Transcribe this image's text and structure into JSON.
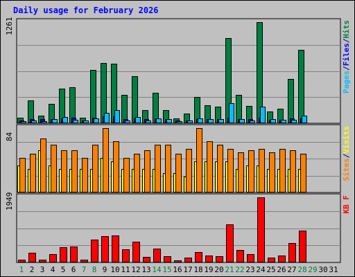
{
  "title": "Daily usage for February 2026",
  "chart_data": [
    {
      "type": "bar",
      "panel": "top",
      "max_label": "1261",
      "ymax": 1261,
      "legend": [
        {
          "text": "Pages",
          "color": "#00c0ff"
        },
        {
          "text": "/",
          "color": "#000080"
        },
        {
          "text": "Files",
          "color": "#0000ff"
        },
        {
          "text": "/",
          "color": "#000080"
        },
        {
          "text": "Hits",
          "color": "#008040"
        }
      ],
      "categories": [
        "1",
        "2",
        "3",
        "4",
        "5",
        "6",
        "7",
        "8",
        "9",
        "10",
        "11",
        "12",
        "13",
        "14",
        "15",
        "16",
        "17",
        "18",
        "19",
        "20",
        "21",
        "22",
        "23",
        "24",
        "25",
        "26",
        "27",
        "28",
        "29",
        "30",
        "31"
      ],
      "series": [
        {
          "name": "Hits",
          "color": "#008040",
          "values": [
            60,
            275,
            85,
            237,
            425,
            445,
            65,
            660,
            750,
            735,
            345,
            580,
            155,
            370,
            160,
            50,
            110,
            325,
            215,
            200,
            1065,
            345,
            205,
            1261,
            140,
            178,
            550,
            915,
            0,
            0,
            0
          ]
        },
        {
          "name": "Files",
          "color": "#0000ff",
          "values": [
            30,
            40,
            40,
            45,
            55,
            60,
            25,
            65,
            75,
            80,
            45,
            55,
            40,
            50,
            40,
            25,
            30,
            45,
            40,
            40,
            60,
            45,
            40,
            65,
            35,
            35,
            50,
            55,
            0,
            0,
            0
          ]
        },
        {
          "name": "Pages",
          "color": "#00c0ff",
          "values": [
            20,
            25,
            15,
            40,
            70,
            35,
            30,
            50,
            120,
            155,
            30,
            70,
            30,
            50,
            45,
            20,
            25,
            50,
            40,
            40,
            245,
            45,
            30,
            200,
            40,
            35,
            35,
            85,
            0,
            0,
            0
          ]
        }
      ]
    },
    {
      "type": "bar",
      "panel": "middle",
      "max_label": "84",
      "ymax": 84,
      "legend": [
        {
          "text": "Sites",
          "color": "#ff8000"
        },
        {
          "text": "/",
          "color": "#000080"
        },
        {
          "text": "Visits",
          "color": "#ffff00"
        }
      ],
      "series": [
        {
          "name": "Visits",
          "color": "#ffff00",
          "values": [
            35,
            30,
            55,
            35,
            30,
            30,
            30,
            30,
            45,
            40,
            30,
            30,
            30,
            30,
            25,
            25,
            20,
            40,
            40,
            40,
            40,
            30,
            35,
            35,
            30,
            30,
            30,
            30,
            0,
            0,
            0
          ]
        },
        {
          "name": "Sites",
          "color": "#ff8000",
          "values": [
            45,
            50,
            70,
            62,
            55,
            55,
            45,
            62,
            84,
            67,
            45,
            50,
            55,
            62,
            62,
            50,
            57,
            84,
            67,
            62,
            57,
            52,
            55,
            57,
            52,
            57,
            55,
            50,
            0,
            0,
            0
          ]
        }
      ]
    },
    {
      "type": "bar",
      "panel": "bottom",
      "max_label": "1949",
      "ymax": 1949,
      "legend": [
        {
          "text": "KB F",
          "color": "#ff0000"
        }
      ],
      "series": [
        {
          "name": "KB F",
          "color": "#ff0000",
          "values": [
            70,
            280,
            60,
            230,
            450,
            470,
            70,
            680,
            780,
            790,
            370,
            600,
            150,
            390,
            170,
            50,
            120,
            300,
            190,
            170,
            1140,
            350,
            230,
            1949,
            130,
            190,
            570,
            940,
            0,
            0,
            0
          ]
        }
      ]
    }
  ],
  "day_labels": [
    "1",
    "2",
    "3",
    "4",
    "5",
    "6",
    "7",
    "8",
    "9",
    "10",
    "11",
    "12",
    "13",
    "14",
    "15",
    "16",
    "17",
    "18",
    "19",
    "20",
    "21",
    "22",
    "23",
    "24",
    "25",
    "26",
    "27",
    "28",
    "29",
    "30",
    "31"
  ],
  "weekend_days": [
    "1",
    "7",
    "8",
    "14",
    "15",
    "21",
    "22",
    "28",
    "29"
  ],
  "colors": {
    "weekday": "#000000",
    "weekend": "#008040"
  }
}
